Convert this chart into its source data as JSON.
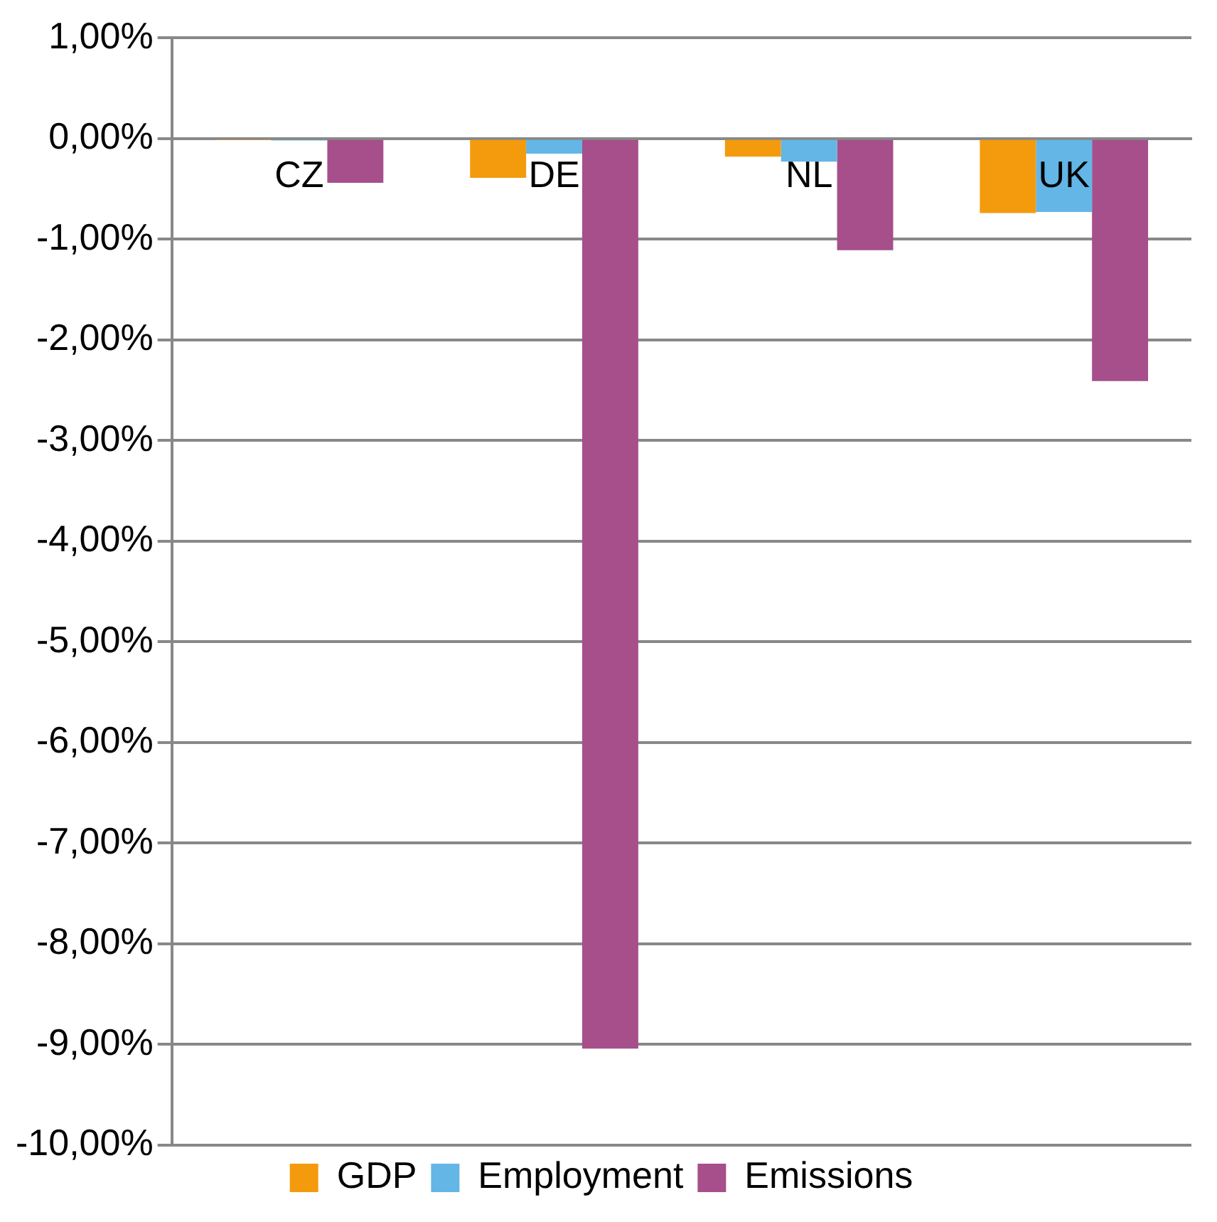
{
  "chart_data": {
    "type": "bar",
    "categories": [
      "CZ",
      "DE",
      "NL",
      "UK"
    ],
    "series": [
      {
        "name": "GDP",
        "color": "#f39b0c",
        "values": [
          -0.01,
          -0.39,
          -0.18,
          -0.74
        ]
      },
      {
        "name": "Employment",
        "color": "#63b6e6",
        "values": [
          -0.02,
          -0.15,
          -0.23,
          -0.73
        ]
      },
      {
        "name": "Emissions",
        "color": "#a64f8b",
        "values": [
          -0.44,
          -9.04,
          -1.11,
          -2.41
        ]
      }
    ],
    "ylim": [
      -10,
      1
    ],
    "yticks": [
      {
        "value": 1,
        "label": "1,00%"
      },
      {
        "value": 0,
        "label": "0,00%"
      },
      {
        "value": -1,
        "label": "-1,00%"
      },
      {
        "value": -2,
        "label": "-2,00%"
      },
      {
        "value": -3,
        "label": "-3,00%"
      },
      {
        "value": -4,
        "label": "-4,00%"
      },
      {
        "value": -5,
        "label": "-5,00%"
      },
      {
        "value": -6,
        "label": "-6,00%"
      },
      {
        "value": -7,
        "label": "-7,00%"
      },
      {
        "value": -8,
        "label": "-8,00%"
      },
      {
        "value": -9,
        "label": "-9,00%"
      },
      {
        "value": -10,
        "label": "-10,00%"
      }
    ],
    "grid": "y",
    "legend": "bottom"
  }
}
